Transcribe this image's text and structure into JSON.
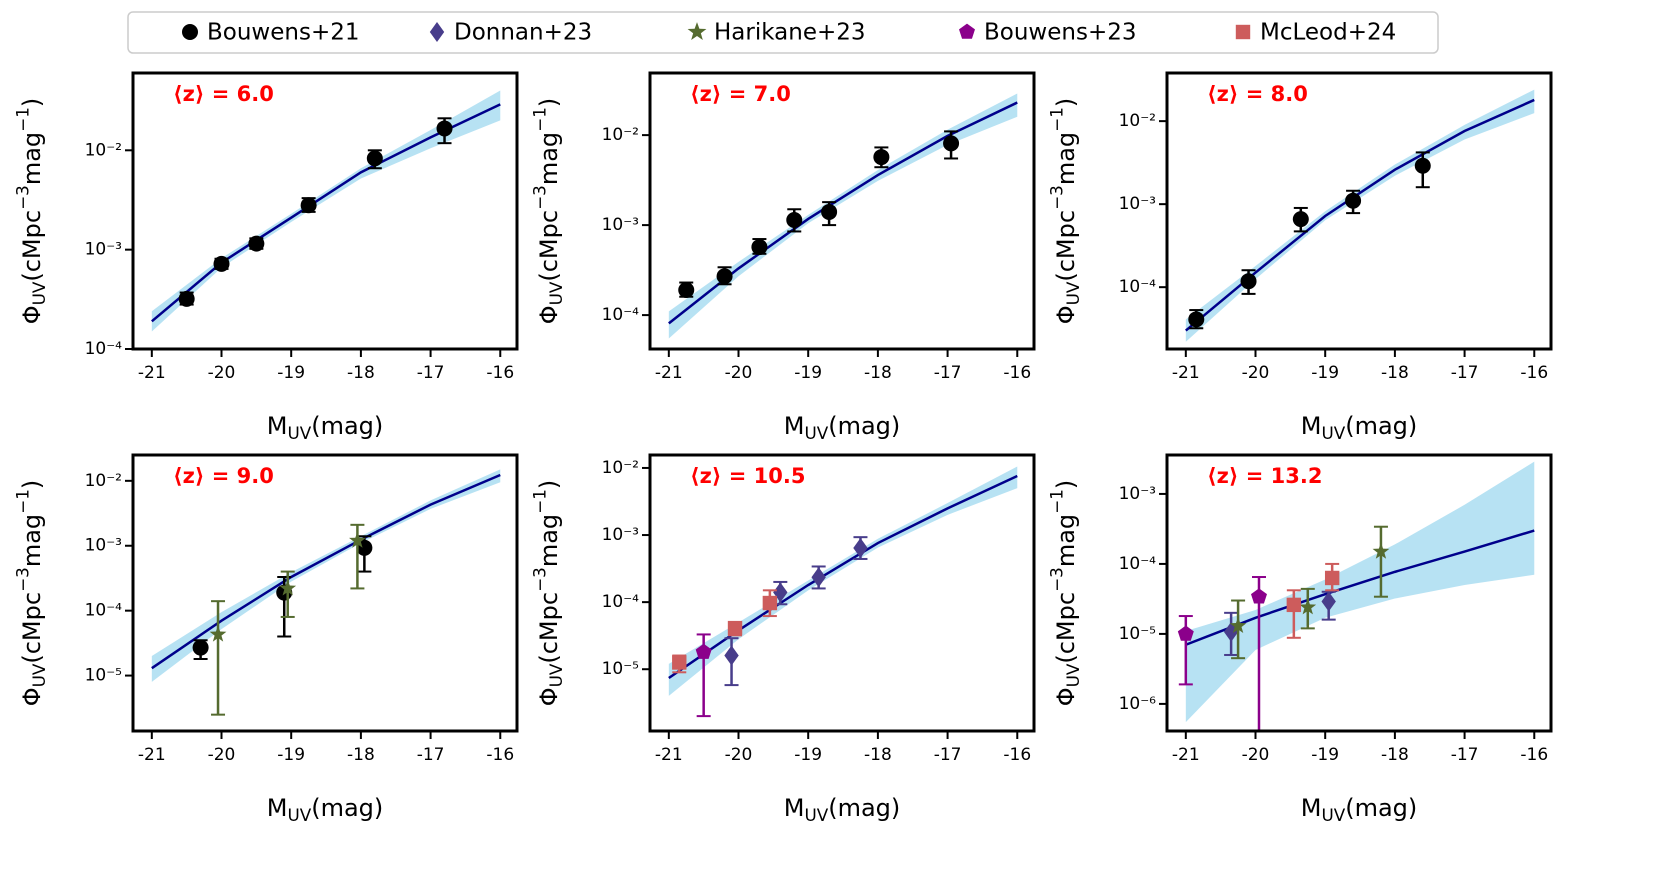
{
  "legend": [
    {
      "name": "Bouwens+21",
      "color": "#000000",
      "marker": "circle"
    },
    {
      "name": "Donnan+23",
      "color": "#483d8b",
      "marker": "diamond"
    },
    {
      "name": "Harikane+23",
      "color": "#556b2f",
      "marker": "star"
    },
    {
      "name": "Bouwens+23",
      "color": "#8b008b",
      "marker": "pentagon"
    },
    {
      "name": "McLeod+24",
      "color": "#cd5c5c",
      "marker": "square"
    }
  ],
  "chart_data": [
    {
      "type": "scatter",
      "annotation": "⟨z⟩ = 6.0",
      "x_label": [
        "M",
        "UV",
        "(mag)"
      ],
      "y_label": [
        "Φ",
        "UV",
        "(cMpc",
        "−3",
        "mag",
        "−1",
        ")"
      ],
      "log_y": true,
      "xlim": [
        -21.27,
        -15.76
      ],
      "ylim": [
        0.0001,
        0.06
      ],
      "xticks": [
        -21,
        -20,
        -19,
        -18,
        -17,
        -16
      ],
      "yticks": [
        {
          "value": 0.0001,
          "label": "10⁻⁴"
        },
        {
          "value": 0.001,
          "label": "10⁻³"
        },
        {
          "value": 0.01,
          "label": "10⁻²"
        }
      ],
      "fit": {
        "color": "#00008b",
        "band_color": "#87ceeb",
        "x": [
          -21,
          -20,
          -19,
          -18,
          -17,
          -16
        ],
        "values": [
          0.00019,
          0.00074,
          0.0021,
          0.006,
          0.0135,
          0.029
        ],
        "lower": [
          0.00015,
          0.00066,
          0.0019,
          0.0052,
          0.0105,
          0.02
        ],
        "upper": [
          0.00024,
          0.00082,
          0.0023,
          0.0066,
          0.016,
          0.04
        ]
      },
      "series": [
        {
          "name": "Bouwens+21",
          "color": "#000000",
          "marker": "circle",
          "x": [
            -20.5,
            -20.0,
            -19.5,
            -18.75,
            -17.8,
            -16.8
          ],
          "values": [
            0.00032,
            0.00072,
            0.00115,
            0.0028,
            0.0083,
            0.0166
          ],
          "err_low": [
            4e-05,
            8e-05,
            0.00013,
            0.0004,
            0.0017,
            0.0048
          ],
          "err_high": [
            5e-05,
            9e-05,
            0.00015,
            0.0005,
            0.0017,
            0.0044
          ]
        }
      ]
    },
    {
      "type": "scatter",
      "annotation": "⟨z⟩ = 7.0",
      "x_label": [
        "M",
        "UV",
        "(mag)"
      ],
      "y_label": [
        "Φ",
        "UV",
        "(cMpc",
        "−3",
        "mag",
        "−1",
        ")"
      ],
      "log_y": true,
      "xlim": [
        -21.27,
        -15.76
      ],
      "ylim": [
        4.2e-05,
        0.049
      ],
      "xticks": [
        -21,
        -20,
        -19,
        -18,
        -17,
        -16
      ],
      "yticks": [
        {
          "value": 0.0001,
          "label": "10⁻⁴"
        },
        {
          "value": 0.001,
          "label": "10⁻³"
        },
        {
          "value": 0.01,
          "label": "10⁻²"
        }
      ],
      "fit": {
        "color": "#00008b",
        "band_color": "#87ceeb",
        "x": [
          -21,
          -20,
          -19,
          -18,
          -17,
          -16
        ],
        "values": [
          8.1e-05,
          0.00033,
          0.00117,
          0.0036,
          0.0098,
          0.023
        ],
        "lower": [
          5.5e-05,
          0.00027,
          0.00105,
          0.0031,
          0.0078,
          0.016
        ],
        "upper": [
          0.00011,
          0.00039,
          0.0013,
          0.0041,
          0.0115,
          0.029
        ]
      },
      "series": [
        {
          "name": "Bouwens+21",
          "color": "#000000",
          "marker": "circle",
          "x": [
            -20.75,
            -20.2,
            -19.7,
            -19.2,
            -18.7,
            -17.95,
            -16.95
          ],
          "values": [
            0.00019,
            0.00027,
            0.00057,
            0.00114,
            0.0014,
            0.0057,
            0.0081
          ],
          "err_low": [
            3e-05,
            5e-05,
            9e-05,
            0.00029,
            0.0004,
            0.0013,
            0.0026
          ],
          "err_high": [
            4e-05,
            7e-05,
            0.00013,
            0.00036,
            0.0004,
            0.0016,
            0.0029
          ]
        }
      ]
    },
    {
      "type": "scatter",
      "annotation": "⟨z⟩ = 8.0",
      "x_label": [
        "M",
        "UV",
        "(mag)"
      ],
      "y_label": [
        "Φ",
        "UV",
        "(cMpc",
        "−3",
        "mag",
        "−1",
        ")"
      ],
      "log_y": true,
      "xlim": [
        -21.27,
        -15.76
      ],
      "ylim": [
        1.8e-05,
        0.038
      ],
      "xticks": [
        -21,
        -20,
        -19,
        -18,
        -17,
        -16
      ],
      "yticks": [
        {
          "value": 0.0001,
          "label": "10⁻⁴"
        },
        {
          "value": 0.001,
          "label": "10⁻³"
        },
        {
          "value": 0.01,
          "label": "10⁻²"
        }
      ],
      "fit": {
        "color": "#00008b",
        "band_color": "#87ceeb",
        "x": [
          -21,
          -20,
          -19,
          -18,
          -17,
          -16
        ],
        "values": [
          3e-05,
          0.00015,
          0.00072,
          0.0026,
          0.0076,
          0.018
        ],
        "lower": [
          2.2e-05,
          0.000125,
          0.00064,
          0.0022,
          0.006,
          0.0125
        ],
        "upper": [
          4.1e-05,
          0.00018,
          0.00082,
          0.003,
          0.009,
          0.024
        ]
      },
      "series": [
        {
          "name": "Bouwens+21",
          "color": "#000000",
          "marker": "circle",
          "x": [
            -20.85,
            -20.1,
            -19.35,
            -18.6,
            -17.6
          ],
          "values": [
            4.1e-05,
            0.000118,
            0.00066,
            0.0011,
            0.0029
          ],
          "err_low": [
            9e-06,
            3.5e-05,
            0.00019,
            0.00032,
            0.0013
          ],
          "err_high": [
            1.2e-05,
            4.2e-05,
            0.00024,
            0.00035,
            0.0013
          ]
        }
      ]
    },
    {
      "type": "scatter",
      "annotation": "⟨z⟩ = 9.0",
      "x_label": [
        "M",
        "UV",
        "(mag)"
      ],
      "y_label": [
        "Φ",
        "UV",
        "(cMpc",
        "−3",
        "mag",
        "−1",
        ")"
      ],
      "log_y": true,
      "xlim": [
        -21.27,
        -15.76
      ],
      "ylim": [
        1.4e-06,
        0.025
      ],
      "xticks": [
        -21,
        -20,
        -19,
        -18,
        -17,
        -16
      ],
      "yticks": [
        {
          "value": 1e-05,
          "label": "10⁻⁵"
        },
        {
          "value": 0.0001,
          "label": "10⁻⁴"
        },
        {
          "value": 0.001,
          "label": "10⁻³"
        },
        {
          "value": 0.01,
          "label": "10⁻²"
        }
      ],
      "fit": {
        "color": "#00008b",
        "band_color": "#87ceeb",
        "x": [
          -21,
          -20,
          -19,
          -18,
          -17,
          -16
        ],
        "values": [
          1.3e-05,
          7e-05,
          0.00033,
          0.00124,
          0.0043,
          0.0123
        ],
        "lower": [
          8e-06,
          5.2e-05,
          0.00028,
          0.0011,
          0.0037,
          0.0095
        ],
        "upper": [
          2e-05,
          9.5e-05,
          0.00039,
          0.0014,
          0.005,
          0.015
        ]
      },
      "series": [
        {
          "name": "Bouwens+21",
          "color": "#000000",
          "marker": "circle",
          "x": [
            -20.3,
            -19.1,
            -17.95
          ],
          "values": [
            2.7e-05,
            0.00019,
            0.00093
          ],
          "err_low": [
            9e-06,
            0.00015,
            0.00053
          ],
          "err_high": [
            8e-06,
            0.00014,
            0.00047
          ]
        },
        {
          "name": "Harikane+23",
          "color": "#556b2f",
          "marker": "star",
          "x": [
            -20.05,
            -19.05,
            -18.05
          ],
          "values": [
            4.3e-05,
            0.00022,
            0.0012
          ],
          "err_low": [
            4.05e-05,
            0.00014,
            0.00098
          ],
          "err_high": [
            9.7e-05,
            0.00018,
            0.0009
          ]
        }
      ]
    },
    {
      "type": "scatter",
      "annotation": "⟨z⟩ = 10.5",
      "x_label": [
        "M",
        "UV",
        "(mag)"
      ],
      "y_label": [
        "Φ",
        "UV",
        "(cMpc",
        "−3",
        "mag",
        "−1",
        ")"
      ],
      "log_y": true,
      "xlim": [
        -21.27,
        -15.76
      ],
      "ylim": [
        1.2e-06,
        0.0156
      ],
      "xticks": [
        -21,
        -20,
        -19,
        -18,
        -17,
        -16
      ],
      "yticks": [
        {
          "value": 1e-05,
          "label": "10⁻⁵"
        },
        {
          "value": 0.0001,
          "label": "10⁻⁴"
        },
        {
          "value": 0.001,
          "label": "10⁻³"
        },
        {
          "value": 0.01,
          "label": "10⁻²"
        }
      ],
      "fit": {
        "color": "#00008b",
        "band_color": "#87ceeb",
        "x": [
          -21,
          -20,
          -19,
          -18,
          -17,
          -16
        ],
        "values": [
          7.4e-06,
          3.8e-05,
          0.00018,
          0.00076,
          0.0025,
          0.0076
        ],
        "lower": [
          4e-06,
          2.8e-05,
          0.00015,
          0.00065,
          0.002,
          0.005
        ],
        "upper": [
          1.2e-05,
          5e-05,
          0.00021,
          0.00088,
          0.003,
          0.0105
        ]
      },
      "series": [
        {
          "name": "Bouwens+23",
          "color": "#8b008b",
          "marker": "pentagon",
          "x": [
            -20.5
          ],
          "values": [
            1.8e-05
          ],
          "err_low": [
            1.6e-05
          ],
          "err_high": [
            1.5e-05
          ]
        },
        {
          "name": "Donnan+23",
          "color": "#483d8b",
          "marker": "diamond",
          "x": [
            -20.1,
            -19.4,
            -18.85,
            -18.25
          ],
          "values": [
            1.6e-05,
            0.00014,
            0.000235,
            0.00064
          ],
          "err_low": [
            1.02e-05,
            4.7e-05,
            7.5e-05,
            0.0002
          ],
          "err_high": [
            1.3e-05,
            6e-05,
            0.000105,
            0.00029
          ]
        },
        {
          "name": "McLeod+24",
          "color": "#cd5c5c",
          "marker": "square",
          "x": [
            -20.85,
            -20.05,
            -19.55
          ],
          "values": [
            1.26e-05,
            4.1e-05,
            9.7e-05
          ],
          "err_low": [
            3.6e-06,
            9e-06,
            3.5e-05
          ],
          "err_high": [
            3.4e-06,
            9e-06,
            5.3e-05
          ]
        }
      ]
    },
    {
      "type": "scatter",
      "annotation": "⟨z⟩ = 13.2",
      "x_label": [
        "M",
        "UV",
        "(mag)"
      ],
      "y_label": [
        "Φ",
        "UV",
        "(cMpc",
        "−3",
        "mag",
        "−1",
        ")"
      ],
      "log_y": true,
      "xlim": [
        -21.27,
        -15.76
      ],
      "ylim": [
        4.1e-07,
        0.0036
      ],
      "xticks": [
        -21,
        -20,
        -19,
        -18,
        -17,
        -16
      ],
      "yticks": [
        {
          "value": 1e-06,
          "label": "10⁻⁶"
        },
        {
          "value": 1e-05,
          "label": "10⁻⁵"
        },
        {
          "value": 0.0001,
          "label": "10⁻⁴"
        },
        {
          "value": 0.001,
          "label": "10⁻³"
        }
      ],
      "fit": {
        "color": "#00008b",
        "band_color": "#87ceeb",
        "x": [
          -21,
          -20,
          -19,
          -18,
          -17,
          -16
        ],
        "values": [
          7e-06,
          1.7e-05,
          3.7e-05,
          7.7e-05,
          0.00015,
          0.0003
        ],
        "lower": [
          5.5e-07,
          5.9e-06,
          1.7e-05,
          3.2e-05,
          5e-05,
          7e-05
        ],
        "upper": [
          1.1e-05,
          2.2e-05,
          6e-05,
          0.00019,
          0.0007,
          0.0029
        ]
      },
      "series": [
        {
          "name": "Bouwens+23",
          "color": "#8b008b",
          "marker": "pentagon",
          "x": [
            -21.0,
            -19.95
          ],
          "values": [
            1e-05,
            3.4e-05
          ],
          "err_low": [
            8.1e-06,
            3.39e-05
          ],
          "err_high": [
            8e-06,
            3.1e-05
          ]
        },
        {
          "name": "Donnan+23",
          "color": "#483d8b",
          "marker": "diamond",
          "x": [
            -20.35,
            -18.95
          ],
          "values": [
            1.07e-05,
            2.9e-05
          ],
          "err_low": [
            5.7e-06,
            1.3e-05
          ],
          "err_high": [
            9.3e-06,
            1.1e-05
          ]
        },
        {
          "name": "Harikane+23",
          "color": "#556b2f",
          "marker": "star",
          "x": [
            -20.25,
            -19.25,
            -18.2
          ],
          "values": [
            1.3e-05,
            2.4e-05,
            0.00015
          ],
          "err_low": [
            8.5e-06,
            1.2e-05,
            0.000116
          ],
          "err_high": [
            1.7e-05,
            2e-05,
            0.00019
          ]
        },
        {
          "name": "McLeod+24",
          "color": "#cd5c5c",
          "marker": "square",
          "x": [
            -19.45,
            -18.9
          ],
          "values": [
            2.6e-05,
            6.3e-05
          ],
          "err_low": [
            1.72e-05,
            2.1e-05
          ],
          "err_high": [
            1.6e-05,
            3.7e-05
          ]
        }
      ]
    }
  ]
}
